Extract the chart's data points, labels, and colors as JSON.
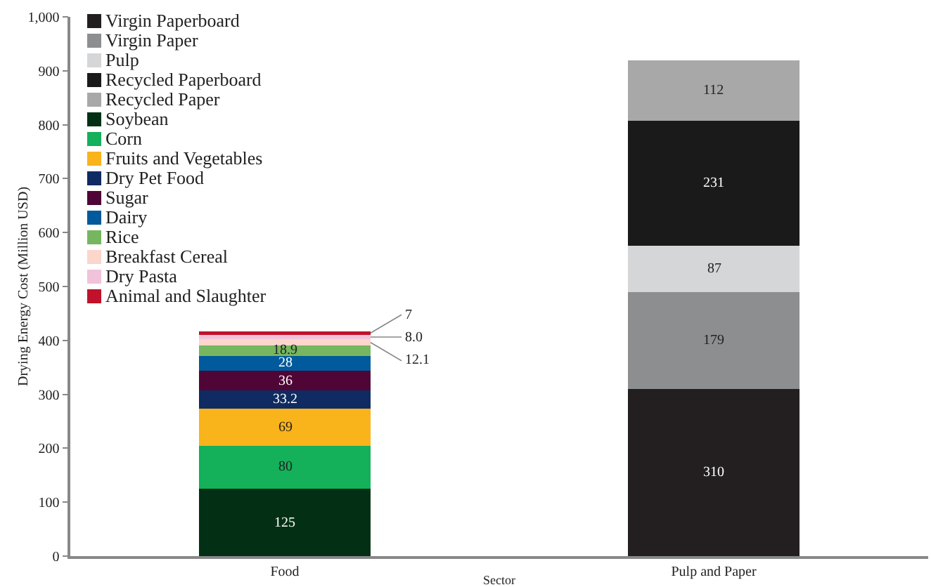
{
  "chart_data": {
    "type": "bar",
    "stacked": true,
    "xlabel": "Sector",
    "ylabel": "Drying Energy Cost (Million USD)",
    "categories": [
      "Food",
      "Pulp and Paper"
    ],
    "ylim": [
      0,
      1000
    ],
    "yticks": [
      0,
      100,
      200,
      300,
      400,
      500,
      600,
      700,
      800,
      900,
      {
        "value": 1000,
        "label": "1,000"
      }
    ],
    "grid": false,
    "legend": "top left",
    "series": [
      {
        "name": "Virgin Paperboard",
        "color": "#231f20",
        "values": [
          null,
          310
        ],
        "value_labels": [
          null,
          "310"
        ]
      },
      {
        "name": "Virgin Paper",
        "color": "#8d8e90",
        "values": [
          null,
          179
        ],
        "value_labels": [
          null,
          "179"
        ]
      },
      {
        "name": "Pulp",
        "color": "#d5d6d8",
        "values": [
          null,
          87
        ],
        "value_labels": [
          null,
          "87"
        ]
      },
      {
        "name": "Recycled Paperboard",
        "color": "#1a1a1a",
        "values": [
          null,
          231
        ],
        "value_labels": [
          null,
          "231"
        ]
      },
      {
        "name": "Recycled Paper",
        "color": "#a8a8a8",
        "values": [
          null,
          112
        ],
        "value_labels": [
          null,
          "112"
        ]
      },
      {
        "name": "Soybean",
        "color": "#033014",
        "values": [
          125,
          null
        ],
        "value_labels": [
          "125",
          null
        ]
      },
      {
        "name": "Corn",
        "color": "#14b05a",
        "values": [
          80,
          null
        ],
        "value_labels": [
          "80",
          null
        ]
      },
      {
        "name": "Fruits and Vegetables",
        "color": "#f9b31b",
        "values": [
          69,
          null
        ],
        "value_labels": [
          "69",
          null
        ]
      },
      {
        "name": "Dry Pet Food",
        "color": "#0f2b61",
        "values": [
          33.2,
          null
        ],
        "value_labels": [
          "33.2",
          null
        ]
      },
      {
        "name": "Sugar",
        "color": "#4f0637",
        "values": [
          36,
          null
        ],
        "value_labels": [
          "36",
          null
        ]
      },
      {
        "name": "Dairy",
        "color": "#005a9c",
        "values": [
          28,
          null
        ],
        "value_labels": [
          "28",
          null
        ]
      },
      {
        "name": "Rice",
        "color": "#76b660",
        "values": [
          18.9,
          null
        ],
        "value_labels": [
          "18.9",
          null
        ]
      },
      {
        "name": "Breakfast Cereal",
        "color": "#fbd6cb",
        "values": [
          12.1,
          null
        ],
        "value_labels": [
          "12.1",
          null
        ]
      },
      {
        "name": "Dry Pasta",
        "color": "#f0c3da",
        "values": [
          8.0,
          null
        ],
        "value_labels": [
          "8.0",
          null
        ]
      },
      {
        "name": "Animal and Slaughter",
        "color": "#c0122a",
        "values": [
          7,
          null
        ],
        "value_labels": [
          "7",
          null
        ]
      }
    ]
  }
}
